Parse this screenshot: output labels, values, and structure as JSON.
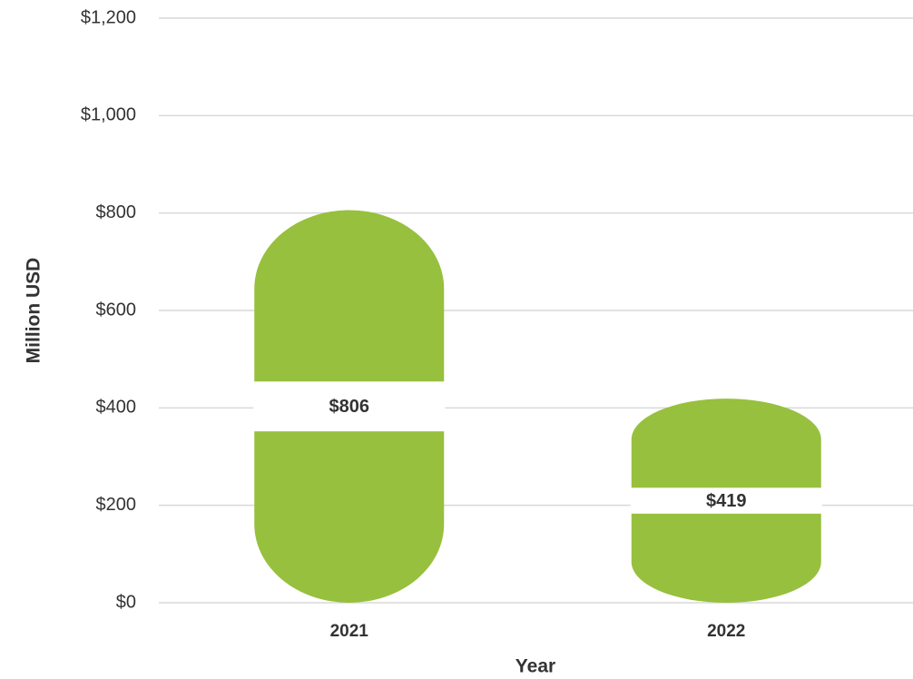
{
  "chart_data": {
    "type": "bar",
    "categories": [
      "2021",
      "2022"
    ],
    "values": [
      806,
      419
    ],
    "value_labels": [
      "$806",
      "$419"
    ],
    "color": "#97c03e",
    "xlabel": "Year",
    "ylabel": "Million USD",
    "ylim": [
      0,
      1200
    ],
    "yticks": [
      {
        "value": 0,
        "label": "$0"
      },
      {
        "value": 200,
        "label": "$200"
      },
      {
        "value": 400,
        "label": "$400"
      },
      {
        "value": 600,
        "label": "$600"
      },
      {
        "value": 800,
        "label": "$800"
      },
      {
        "value": 1000,
        "label": "$1,000"
      },
      {
        "value": 1200,
        "label": "$1,200"
      }
    ],
    "grid": true
  }
}
